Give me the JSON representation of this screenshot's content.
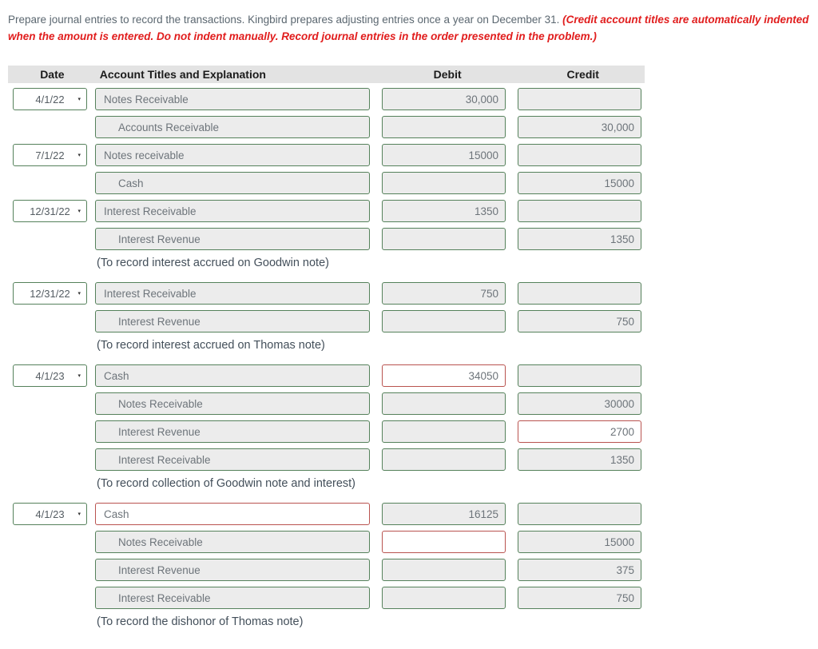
{
  "instructions": {
    "normal": "Prepare journal entries to record the transactions. Kingbird prepares adjusting entries once a year on December 31. ",
    "emphasis": "(Credit account titles are automatically indented when the amount is entered. Do not indent manually. Record journal entries in the order presented in the problem.)"
  },
  "icons": {
    "dropdown_caret": "▾"
  },
  "colors": {
    "field_border_green": "#55815b",
    "field_bg_gray": "#ececec",
    "error_border_red": "#b9534f",
    "header_bg": "#e3e3e3",
    "instruction_red": "#e11d1d"
  },
  "table": {
    "headers": {
      "date": "Date",
      "account": "Account Titles and Explanation",
      "debit": "Debit",
      "credit": "Credit"
    },
    "rows": [
      {
        "date": "4/1/22",
        "account": "Notes Receivable",
        "indent": false,
        "debit": "30,000",
        "credit": "",
        "account_error": false,
        "debit_error": false,
        "credit_error": false,
        "note": null
      },
      {
        "date": null,
        "account": "Accounts Receivable",
        "indent": true,
        "debit": "",
        "credit": "30,000",
        "account_error": false,
        "debit_error": false,
        "credit_error": false,
        "note": null
      },
      {
        "date": "7/1/22",
        "account": "Notes receivable",
        "indent": false,
        "debit": "15000",
        "credit": "",
        "account_error": false,
        "debit_error": false,
        "credit_error": false,
        "note": null
      },
      {
        "date": null,
        "account": "Cash",
        "indent": true,
        "debit": "",
        "credit": "15000",
        "account_error": false,
        "debit_error": false,
        "credit_error": false,
        "note": null
      },
      {
        "date": "12/31/22",
        "account": "Interest Receivable",
        "indent": false,
        "debit": "1350",
        "credit": "",
        "account_error": false,
        "debit_error": false,
        "credit_error": false,
        "note": null
      },
      {
        "date": null,
        "account": "Interest Revenue",
        "indent": true,
        "debit": "",
        "credit": "1350",
        "account_error": false,
        "debit_error": false,
        "credit_error": false,
        "note": "(To record interest accrued on Goodwin note)"
      },
      {
        "date": "12/31/22",
        "account": "Interest Receivable",
        "indent": false,
        "debit": "750",
        "credit": "",
        "account_error": false,
        "debit_error": false,
        "credit_error": false,
        "note": null
      },
      {
        "date": null,
        "account": "Interest Revenue",
        "indent": true,
        "debit": "",
        "credit": "750",
        "account_error": false,
        "debit_error": false,
        "credit_error": false,
        "note": "(To record interest accrued on Thomas note)"
      },
      {
        "date": "4/1/23",
        "account": "Cash",
        "indent": false,
        "debit": "34050",
        "credit": "",
        "account_error": false,
        "debit_error": true,
        "credit_error": false,
        "note": null
      },
      {
        "date": null,
        "account": "Notes Receivable",
        "indent": true,
        "debit": "",
        "credit": "30000",
        "account_error": false,
        "debit_error": false,
        "credit_error": false,
        "note": null
      },
      {
        "date": null,
        "account": "Interest Revenue",
        "indent": true,
        "debit": "",
        "credit": "2700",
        "account_error": false,
        "debit_error": false,
        "credit_error": true,
        "note": null
      },
      {
        "date": null,
        "account": "Interest Receivable",
        "indent": true,
        "debit": "",
        "credit": "1350",
        "account_error": false,
        "debit_error": false,
        "credit_error": false,
        "note": "(To record collection of Goodwin note and interest)"
      },
      {
        "date": "4/1/23",
        "account": "Cash",
        "indent": false,
        "debit": "16125",
        "credit": "",
        "account_error": true,
        "debit_error": false,
        "credit_error": false,
        "note": null
      },
      {
        "date": null,
        "account": "Notes Receivable",
        "indent": true,
        "debit": "",
        "credit": "15000",
        "account_error": false,
        "debit_error": true,
        "credit_error": false,
        "note": null
      },
      {
        "date": null,
        "account": "Interest Revenue",
        "indent": true,
        "debit": "",
        "credit": "375",
        "account_error": false,
        "debit_error": false,
        "credit_error": false,
        "note": null
      },
      {
        "date": null,
        "account": "Interest Receivable",
        "indent": true,
        "debit": "",
        "credit": "750",
        "account_error": false,
        "debit_error": false,
        "credit_error": false,
        "note": "(To record the dishonor of Thomas note)"
      }
    ]
  }
}
